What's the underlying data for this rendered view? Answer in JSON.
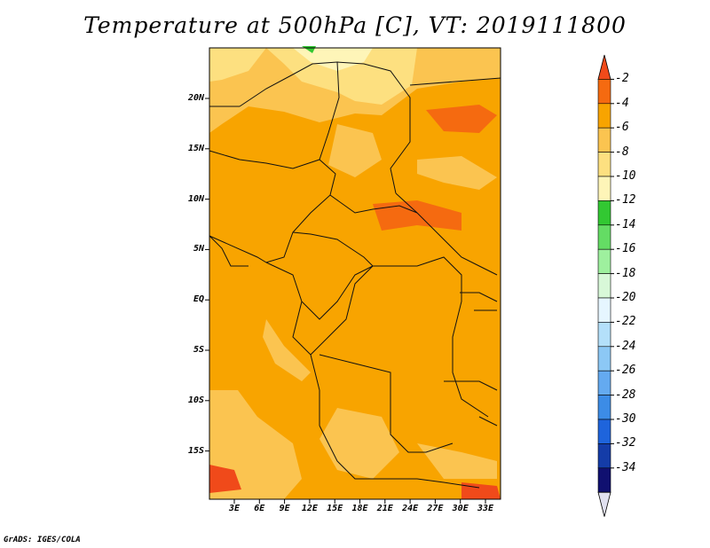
{
  "title": "Temperature at 500hPa [C], VT: 2019111800",
  "credit": "GrADS: IGES/COLA",
  "lat_labels": [
    "20N",
    "15N",
    "10N",
    "5N",
    "EQ",
    "5S",
    "10S",
    "15S"
  ],
  "lon_labels": [
    "3E",
    "6E",
    "9E",
    "12E",
    "15E",
    "18E",
    "21E",
    "24E",
    "27E",
    "30E",
    "33E"
  ],
  "colorbar": {
    "labels": [
      "-2",
      "-4",
      "-6",
      "-8",
      "-10",
      "-12",
      "-14",
      "-16",
      "-18",
      "-20",
      "-22",
      "-24",
      "-26",
      "-28",
      "-30",
      "-32",
      "-34"
    ],
    "colors": [
      "#f04a1a",
      "#f56a10",
      "#f8a400",
      "#fbc450",
      "#fde080",
      "#fef5b8",
      "#32c832",
      "#64dc64",
      "#9ef09e",
      "#d8f8d8",
      "#e6f6ff",
      "#b4e0fa",
      "#8cc8f5",
      "#64aaf0",
      "#3c8ce6",
      "#1e64dc",
      "#143ca8",
      "#101070",
      "#e0e0f0"
    ]
  },
  "map_colors": {
    "background": "#f8a400",
    "light": "#fbc450",
    "lighter": "#fde080",
    "lightest": "#fef5b8",
    "warm": "#f56a10",
    "hot": "#f04a1a",
    "green": "#32c832"
  }
}
